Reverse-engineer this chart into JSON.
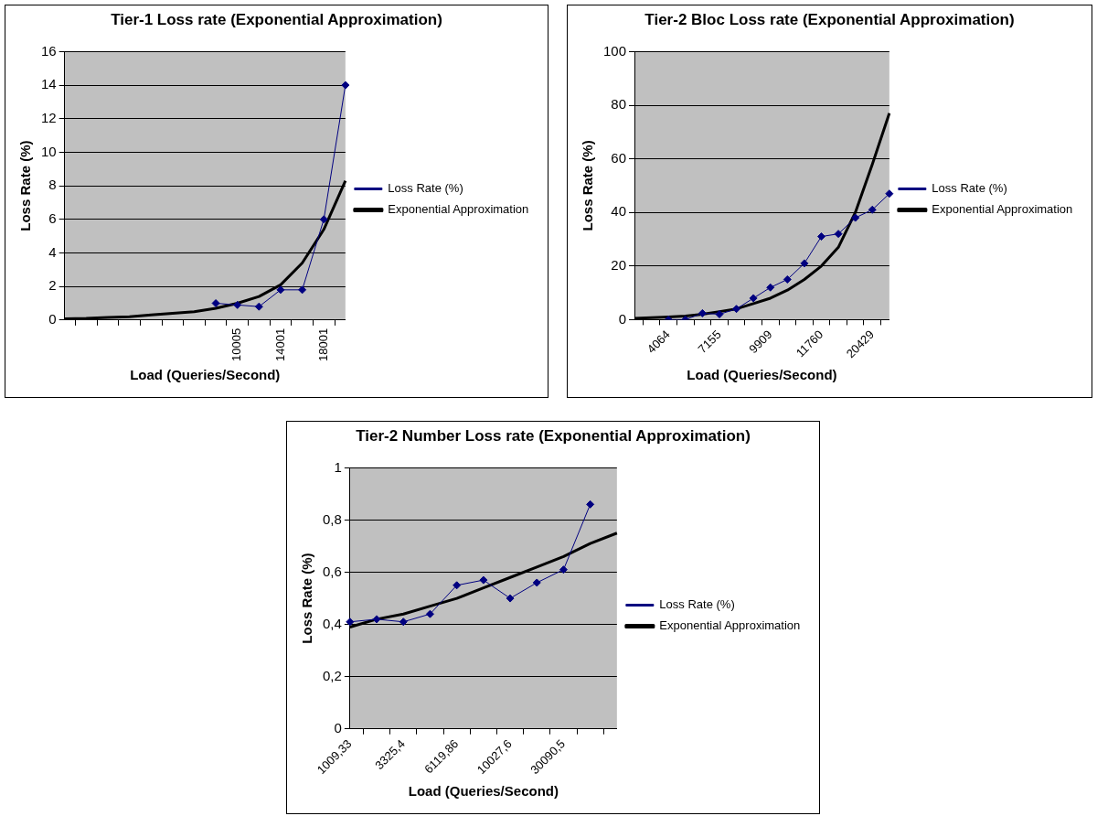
{
  "chart_data": [
    {
      "type": "line",
      "title": "Tier-1 Loss rate (Exponential Approximation)",
      "xlabel": "Load (Queries/Second)",
      "ylabel": "Loss Rate (%)",
      "categories": [
        null,
        null,
        null,
        null,
        null,
        null,
        null,
        null,
        "10005",
        null,
        "14001",
        null,
        "18001",
        null
      ],
      "ylim": [
        0,
        16
      ],
      "yticks": [
        0,
        2,
        4,
        6,
        8,
        10,
        12,
        14,
        16
      ],
      "grid": "y",
      "legend": "right",
      "series": [
        {
          "name": "Loss Rate (%)",
          "color": "#000080",
          "marker": "diamond",
          "values": [
            null,
            null,
            null,
            null,
            null,
            null,
            null,
            1.0,
            0.9,
            0.8,
            1.8,
            1.8,
            6,
            14
          ]
        },
        {
          "name": "Exponential Approximation",
          "color": "#000000",
          "marker": "none",
          "values": [
            0.08,
            0.1,
            0.15,
            0.2,
            0.3,
            0.4,
            0.5,
            0.7,
            1.0,
            1.4,
            2.1,
            3.4,
            5.4,
            8.3
          ]
        }
      ]
    },
    {
      "type": "line",
      "title": "Tier-2 Bloc Loss rate (Exponential Approximation)",
      "xlabel": "Load (Queries/Second)",
      "ylabel": "Loss Rate (%)",
      "categories": [
        null,
        null,
        "4064",
        null,
        null,
        "7155",
        null,
        null,
        "9909",
        null,
        null,
        "11760",
        null,
        null,
        "20429",
        null
      ],
      "ylim": [
        0,
        100
      ],
      "yticks": [
        0,
        20,
        40,
        60,
        80,
        100
      ],
      "grid": "y",
      "legend": "right",
      "series": [
        {
          "name": "Loss Rate (%)",
          "color": "#000080",
          "marker": "diamond",
          "values": [
            null,
            null,
            0,
            0,
            2.4,
            2,
            4,
            8,
            12,
            15,
            21,
            31,
            32,
            38,
            41,
            47
          ]
        },
        {
          "name": "Exponential Approximation",
          "color": "#000000",
          "marker": "none",
          "values": [
            0.5,
            0.7,
            1,
            1.3,
            2,
            3,
            4,
            6,
            8,
            11,
            15,
            20,
            27,
            40,
            58,
            77
          ]
        }
      ]
    },
    {
      "type": "line",
      "title": "Tier-2 Number Loss rate (Exponential Approximation)",
      "xlabel": "Load (Queries/Second)",
      "ylabel": "Loss Rate (%)",
      "categories": [
        "1009,33",
        null,
        "3325,4",
        null,
        "6119,86",
        null,
        "10027,6",
        null,
        "30090,5",
        null,
        null
      ],
      "ylim": [
        0,
        1
      ],
      "yticks": [
        0,
        {
          "value": 0.2,
          "label": "0,2"
        },
        {
          "value": 0.4,
          "label": "0,4"
        },
        {
          "value": 0.6,
          "label": "0,6"
        },
        {
          "value": 0.8,
          "label": "0,8"
        },
        1
      ],
      "grid": "y",
      "legend": "right",
      "series": [
        {
          "name": "Loss Rate (%)",
          "color": "#000080",
          "marker": "diamond",
          "values": [
            0.41,
            0.42,
            0.41,
            0.44,
            0.55,
            0.57,
            0.5,
            0.56,
            0.61,
            0.86,
            null
          ]
        },
        {
          "name": "Exponential Approximation",
          "color": "#000000",
          "marker": "none",
          "values": [
            0.39,
            0.42,
            0.44,
            0.47,
            0.5,
            0.54,
            0.58,
            0.62,
            0.66,
            0.71,
            0.75
          ]
        }
      ]
    }
  ]
}
